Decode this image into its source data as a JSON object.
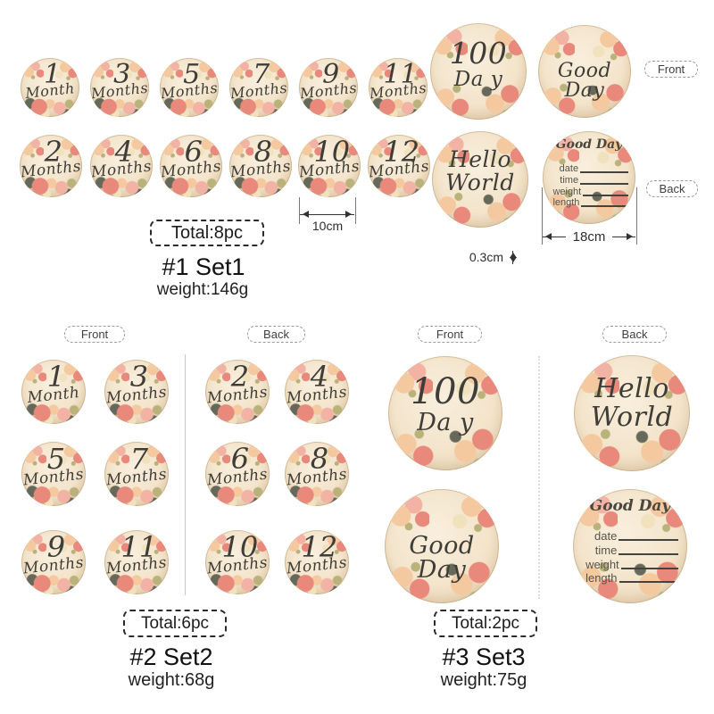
{
  "labels": {
    "front": "Front",
    "back": "Back"
  },
  "month_words": {
    "singular": "Month",
    "plural": "Months"
  },
  "sets": {
    "set1": {
      "title": "#1 Set1",
      "total": "Total:8pc",
      "weight": "weight:146g",
      "front_numbers": [
        "1",
        "3",
        "5",
        "7",
        "9",
        "11"
      ],
      "back_numbers": [
        "2",
        "4",
        "6",
        "8",
        "10",
        "12"
      ],
      "measurements": {
        "small_disc_width": "10cm",
        "large_disc_width": "18cm",
        "thickness": "0.3cm"
      }
    },
    "set2": {
      "title": "#2 Set2",
      "total": "Total:6pc",
      "weight": "weight:68g",
      "front_numbers": [
        "1",
        "3",
        "5",
        "7",
        "9",
        "11"
      ],
      "back_numbers": [
        "2",
        "4",
        "6",
        "8",
        "10",
        "12"
      ]
    },
    "set3": {
      "title": "#3 Set3",
      "total": "Total:2pc",
      "weight": "weight:75g"
    }
  },
  "special_discs": {
    "hundred_day": {
      "line1": "100",
      "line2": "Da y"
    },
    "good_day": {
      "text": "Good Day"
    },
    "hello_world": {
      "line1": "Hello",
      "line2": "World"
    },
    "record": {
      "title": "Good Day",
      "fields": [
        "date",
        "time",
        "weight",
        "length"
      ]
    }
  },
  "colors": {
    "wood": "#f3e4cb",
    "wood_light": "#f9efdd",
    "wood_shadow": "#e4cead",
    "flower_pink": "#e8897c",
    "flower_pink_light": "#f2b3a4",
    "flower_peach": "#f5c99f",
    "flower_cream": "#efe2bd",
    "leaf_dark": "#66695a",
    "leaf_olive": "#b9b27b",
    "ink": "#3f3d37",
    "stick_brown": "#6b4733",
    "measure": "#333333"
  }
}
